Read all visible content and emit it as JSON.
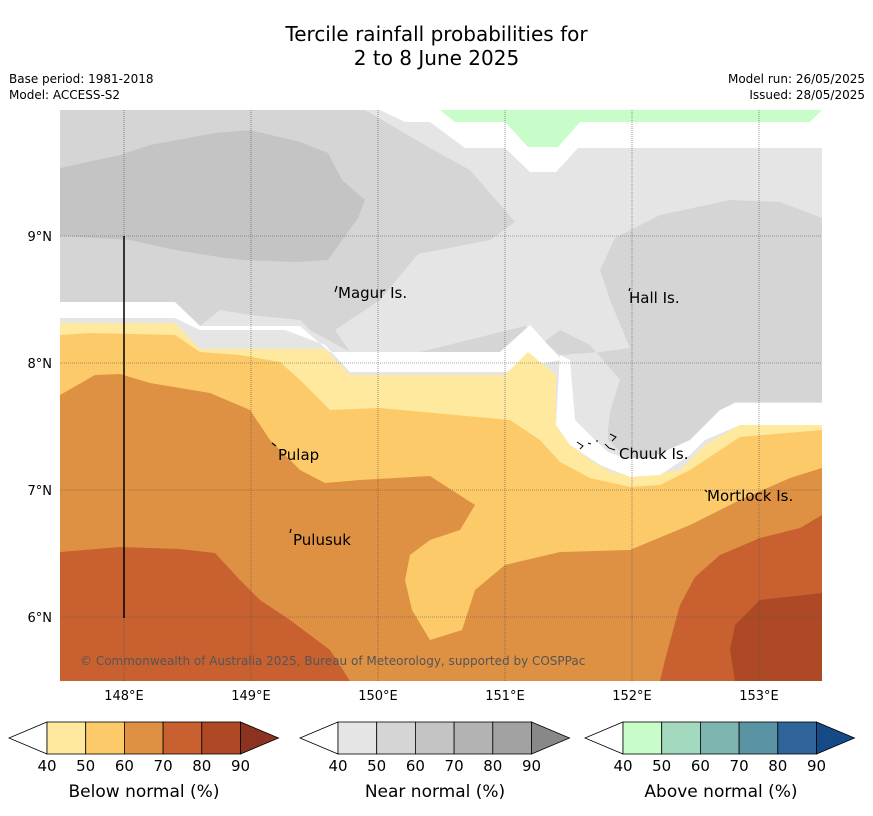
{
  "title": {
    "line1": "Tercile rainfall probabilities for",
    "line2": "2 to 8 June 2025"
  },
  "meta": {
    "base_period": "Base period: 1981-2018",
    "model": "Model: ACCESS-S2",
    "model_run": "Model run: 26/05/2025",
    "issued": "Issued: 28/05/2025"
  },
  "map": {
    "lon_ticks": [
      "148°E",
      "149°E",
      "150°E",
      "151°E",
      "152°E",
      "153°E"
    ],
    "lat_ticks": [
      "9°N",
      "8°N",
      "7°N",
      "6°N"
    ],
    "places": [
      "Magur Is.",
      "Hall Is.",
      "Pulap",
      "Chuuk Is.",
      "Mortlock Is.",
      "Pulusuk"
    ],
    "copyright": "© Commonwealth of Australia 2025, Bureau of Meteorology, supported by COSPPac"
  },
  "colorbars": [
    {
      "label": "Below normal (%)",
      "ticks": [
        "40",
        "50",
        "60",
        "70",
        "80",
        "90"
      ],
      "colors": [
        "#fee99e",
        "#fdca69",
        "#df9143",
        "#c96030",
        "#ad4a25",
        "#8b3220"
      ]
    },
    {
      "label": "Near normal (%)",
      "ticks": [
        "40",
        "50",
        "60",
        "70",
        "80",
        "90"
      ],
      "colors": [
        "#e5e5e5",
        "#d5d5d5",
        "#c4c4c4",
        "#b3b3b3",
        "#a2a2a2",
        "#888888"
      ]
    },
    {
      "label": "Above normal (%)",
      "ticks": [
        "40",
        "50",
        "60",
        "70",
        "80",
        "90"
      ],
      "colors": [
        "#c8fcc8",
        "#a3d9bf",
        "#7fb5b0",
        "#5a93a3",
        "#2f6399",
        "#144a86"
      ]
    }
  ]
}
